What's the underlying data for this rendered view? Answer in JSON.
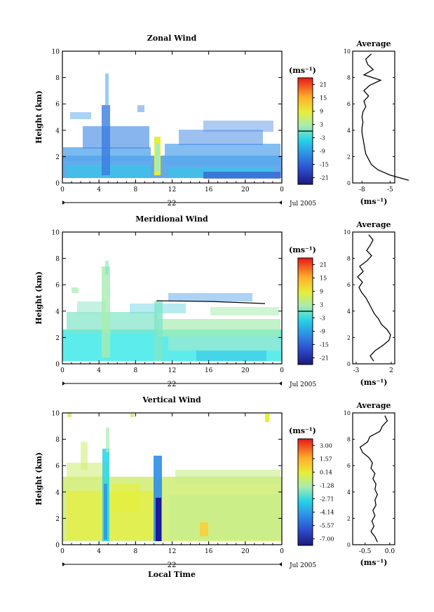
{
  "chart_data": [
    {
      "type": "heatmap",
      "title": "Zonal Wind",
      "ylabel": "Height (km)",
      "ylim": [
        0,
        10
      ],
      "y_ticks": [
        "0",
        "2",
        "4",
        "6",
        "8",
        "10"
      ],
      "xlim": [
        0,
        24
      ],
      "x_ticks": [
        "0",
        "4",
        "8",
        "12",
        "16",
        "20",
        "0"
      ],
      "date_label": "22",
      "month_label": "Jul 2005",
      "colorbar_unit": "(ms⁻¹)",
      "colorbar_ticks": [
        "21",
        "15",
        "9",
        "3",
        "-3",
        "-9",
        "-15",
        "-21"
      ],
      "colorbar_range": [
        -24,
        24
      ],
      "average_profile": {
        "title": "Average",
        "xlabel": "(ms⁻¹)",
        "x_ticks": [
          "-5",
          "-8"
        ],
        "y_ticks": [
          "0",
          "2",
          "4",
          "6",
          "8",
          "10"
        ],
        "heights": [
          0.2,
          0.6,
          1.0,
          1.4,
          1.8,
          2.2,
          2.6,
          3.0,
          3.4,
          3.8,
          4.2,
          4.6,
          5.0,
          5.4,
          5.8,
          6.2,
          6.6,
          7.0,
          7.4,
          7.8,
          8.2,
          8.6,
          9.0,
          9.4,
          9.8
        ],
        "values": [
          -3.0,
          -5.0,
          -6.3,
          -7.0,
          -7.3,
          -7.6,
          -7.7,
          -7.8,
          -7.9,
          -8.0,
          -8.0,
          -7.9,
          -8.0,
          -7.9,
          -7.6,
          -7.8,
          -7.3,
          -7.8,
          -7.2,
          -6.0,
          -7.8,
          -6.8,
          -7.4,
          -7.6,
          -7.0
        ]
      }
    },
    {
      "type": "heatmap",
      "title": "Meridional Wind",
      "ylabel": "Height (km)",
      "ylim": [
        0,
        10
      ],
      "y_ticks": [
        "0",
        "2",
        "4",
        "6",
        "8",
        "10"
      ],
      "xlim": [
        0,
        24
      ],
      "x_ticks": [
        "0",
        "4",
        "8",
        "12",
        "16",
        "20",
        "0"
      ],
      "date_label": "22",
      "month_label": "Jul 2005",
      "colorbar_unit": "(ms⁻¹)",
      "colorbar_ticks": [
        "21",
        "15",
        "9",
        "3",
        "-3",
        "-9",
        "-15",
        "-21"
      ],
      "colorbar_range": [
        -24,
        24
      ],
      "average_profile": {
        "title": "Average",
        "xlabel": "(ms⁻¹)",
        "x_ticks": [
          "-3",
          "2"
        ],
        "y_ticks": [
          "0",
          "2",
          "4",
          "6",
          "8",
          "10"
        ],
        "heights": [
          0.2,
          0.6,
          1.0,
          1.4,
          1.8,
          2.2,
          2.6,
          3.0,
          3.4,
          3.8,
          4.2,
          4.6,
          5.0,
          5.4,
          5.8,
          6.2,
          6.6,
          7.0,
          7.4,
          7.8,
          8.2,
          8.6,
          9.0,
          9.4,
          9.8
        ],
        "values": [
          -0.5,
          -1.0,
          -0.3,
          0.8,
          1.7,
          1.9,
          1.4,
          0.6,
          0.2,
          -0.4,
          -0.8,
          -1.2,
          -1.6,
          -2.2,
          -2.6,
          -2.1,
          -2.8,
          -2.0,
          -2.5,
          -1.5,
          -0.8,
          -1.5,
          -1.0,
          -0.6,
          -1.2
        ]
      }
    },
    {
      "type": "heatmap",
      "title": "Vertical Wind",
      "ylabel": "Height (km)",
      "xlabel": "Local Time",
      "ylim": [
        0,
        10
      ],
      "y_ticks": [
        "0",
        "2",
        "4",
        "6",
        "8",
        "10"
      ],
      "xlim": [
        0,
        24
      ],
      "x_ticks": [
        "0",
        "4",
        "8",
        "12",
        "16",
        "20",
        "0"
      ],
      "date_label": "22",
      "month_label": "Jul 2005",
      "colorbar_unit": "(ms⁻¹)",
      "colorbar_ticks": [
        "3.00",
        "1.57",
        "0.14",
        "-1.28",
        "-2.71",
        "-4.14",
        "-5.57",
        "-7.00"
      ],
      "colorbar_range": [
        -7.7,
        3.7
      ],
      "average_profile": {
        "title": "Average",
        "xlabel": "(ms⁻¹)",
        "x_ticks": [
          "-0.5",
          "0.0"
        ],
        "y_ticks": [
          "0",
          "2",
          "4",
          "6",
          "8",
          "10"
        ],
        "heights": [
          0.2,
          0.6,
          1.0,
          1.4,
          1.8,
          2.2,
          2.6,
          3.0,
          3.4,
          3.8,
          4.2,
          4.6,
          5.0,
          5.4,
          5.8,
          6.2,
          6.6,
          7.0,
          7.4,
          7.8,
          8.2,
          8.6,
          9.0,
          9.4,
          9.8
        ],
        "values": [
          -0.25,
          -0.3,
          -0.38,
          -0.32,
          -0.36,
          -0.3,
          -0.34,
          -0.28,
          -0.3,
          -0.25,
          -0.3,
          -0.28,
          -0.34,
          -0.3,
          -0.38,
          -0.35,
          -0.42,
          -0.55,
          -0.6,
          -0.45,
          -0.4,
          -0.2,
          -0.15,
          -0.05,
          -0.1
        ]
      }
    }
  ]
}
